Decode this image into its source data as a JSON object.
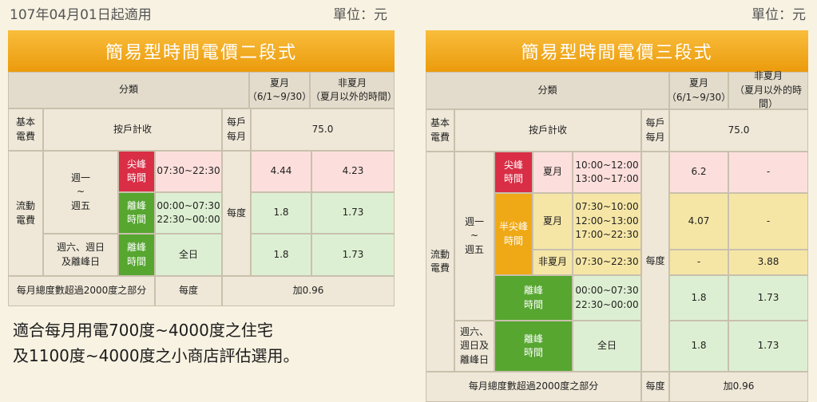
{
  "top": {
    "date": "107年04月01日起適用",
    "unit": "單位：元"
  },
  "left_table": {
    "title": "簡易型時間電價二段式",
    "h_category": "分類",
    "h_summer": "夏月",
    "h_summer_range": "（6/1~9/30）",
    "h_nonsummer": "非夏月",
    "h_nonsummer_range": "（夏月以外的時間）",
    "basic_fee_label": "基本\n電費",
    "per_household": "按戶計收",
    "per_household_month": "每戶\n每月",
    "basic_fee_value": "75.0",
    "flow_fee_label": "流動\n電費",
    "weekday": "週一\n~\n週五",
    "peak": "尖峰\n時間",
    "peak_time": "07:30~22:30",
    "peak_summer": "4.44",
    "peak_nonsummer": "4.23",
    "offpeak": "離峰\n時間",
    "offpeak_time": "00:00~07:30\n22:30~00:00",
    "offpeak_summer": "1.8",
    "offpeak_nonsummer": "1.73",
    "per_degree": "每度",
    "weekend": "週六、週日\n及離峰日",
    "weekend_offpeak": "離峰\n時間",
    "all_day": "全日",
    "weekend_summer": "1.8",
    "weekend_nonsummer": "1.73",
    "excess_label": "每月總度數超過2000度之部分",
    "excess_unit": "每度",
    "excess_value": "加0.96"
  },
  "right_table": {
    "title": "簡易型時間電價三段式",
    "h_category": "分類",
    "h_summer": "夏月",
    "h_summer_range": "（6/1~9/30）",
    "h_nonsummer": "非夏月",
    "h_nonsummer_range": "（夏月以外的時間）",
    "basic_fee_label": "基本\n電費",
    "per_household": "按戶計收",
    "per_household_month": "每戶\n每月",
    "basic_fee_value": "75.0",
    "flow_fee_label": "流動\n電費",
    "weekday": "週一\n~\n週五",
    "peak": "尖峰\n時間",
    "summer_label": "夏月",
    "peak_time": "10:00~12:00\n13:00~17:00",
    "peak_summer": "6.2",
    "peak_nonsummer": "-",
    "semi_peak": "半尖峰\n時間",
    "semi_summer_label": "夏月",
    "semi_summer_time": "07:30~10:00\n12:00~13:00\n17:00~22:30",
    "semi_summer_summer": "4.07",
    "semi_summer_nonsummer": "-",
    "semi_nonsummer_label": "非夏月",
    "semi_nonsummer_time": "07:30~22:30",
    "semi_nonsummer_summer": "-",
    "semi_nonsummer_nonsummer": "3.88",
    "per_degree": "每度",
    "offpeak": "離峰\n時間",
    "offpeak_time": "00:00~07:30\n22:30~00:00",
    "offpeak_summer": "1.8",
    "offpeak_nonsummer": "1.73",
    "weekend": "週六、\n週日及\n離峰日",
    "weekend_offpeak": "離峰\n時間",
    "all_day": "全日",
    "weekend_summer": "1.8",
    "weekend_nonsummer": "1.73",
    "excess_label": "每月總度數超過2000度之部分",
    "excess_unit": "每度",
    "excess_value": "加0.96"
  },
  "notes": {
    "line1": "適合每月用電700度~4000度之住宅",
    "line2": "及1100度~4000度之小商店評估選用。"
  }
}
